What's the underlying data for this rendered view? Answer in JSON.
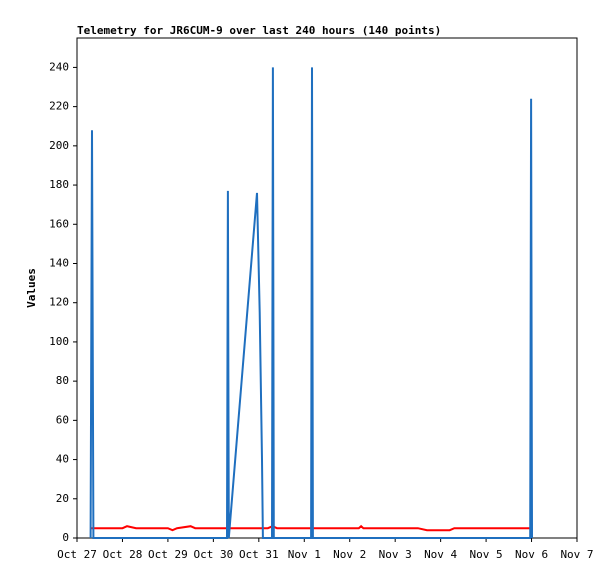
{
  "chart_data": {
    "type": "line",
    "title": "Telemetry for JR6CUM-9 over last 240 hours (140 points)",
    "y_label": "Values",
    "xlim": [
      0,
      11
    ],
    "xticks": [
      {
        "value": 0,
        "label": "Oct 27"
      },
      {
        "value": 1,
        "label": "Oct 28"
      },
      {
        "value": 2,
        "label": "Oct 29"
      },
      {
        "value": 3,
        "label": "Oct 30"
      },
      {
        "value": 4,
        "label": "Oct 31"
      },
      {
        "value": 5,
        "label": "Nov 1"
      },
      {
        "value": 6,
        "label": "Nov 2"
      },
      {
        "value": 7,
        "label": "Nov 3"
      },
      {
        "value": 8,
        "label": "Nov 4"
      },
      {
        "value": 9,
        "label": "Nov 5"
      },
      {
        "value": 10,
        "label": "Nov 6"
      },
      {
        "value": 11,
        "label": "Nov 7"
      }
    ],
    "ylim": [
      0,
      255
    ],
    "yticks": [
      0,
      20,
      40,
      60,
      80,
      100,
      120,
      140,
      160,
      180,
      200,
      220,
      240
    ],
    "series": [
      {
        "color": "#ff0000",
        "x": [
          0.3,
          1.0,
          1.1,
          1.3,
          2.0,
          2.1,
          2.2,
          2.5,
          2.6,
          4.2,
          4.3,
          4.4,
          6.2,
          6.25,
          6.3,
          7.5,
          7.7,
          8.2,
          8.3,
          10.0
        ],
        "values": [
          5,
          5,
          6,
          5,
          5,
          4,
          5,
          6,
          5,
          5,
          6,
          5,
          5,
          6,
          5,
          5,
          4,
          4,
          5,
          5
        ]
      },
      {
        "color": "#1f6fbf",
        "x": [
          0.3,
          0.33,
          0.36,
          3.3,
          3.32,
          3.34,
          3.96,
          4.02,
          4.07,
          4.09,
          4.29,
          4.31,
          4.33,
          5.15,
          5.17,
          5.19,
          9.97,
          9.99,
          10.01
        ],
        "values": [
          0,
          208,
          0,
          0,
          177,
          0,
          176,
          115,
          40,
          0,
          0,
          240,
          0,
          0,
          240,
          0,
          0,
          224,
          0
        ]
      }
    ]
  }
}
